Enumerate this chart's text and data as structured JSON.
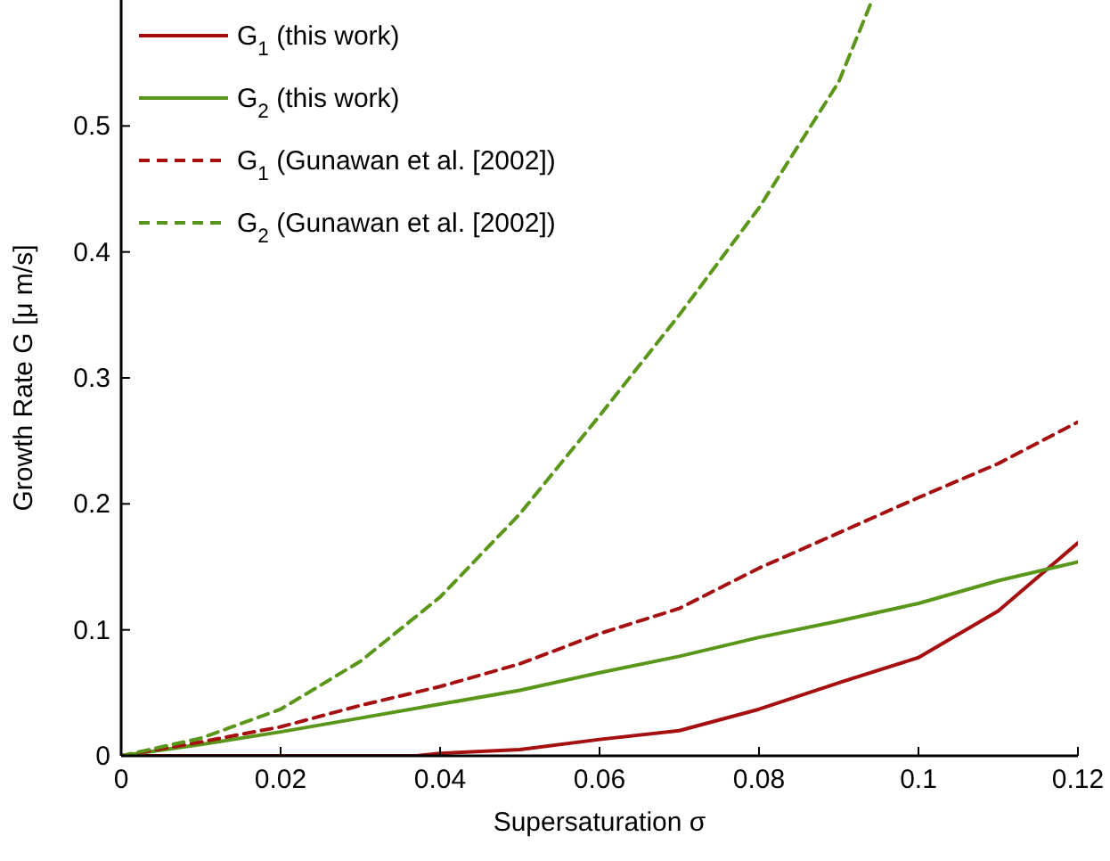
{
  "chart_data": {
    "type": "line",
    "xlabel": "Supersaturation σ",
    "ylabel": "Growth Rate G [μ m/s]",
    "xlim": [
      0,
      0.12
    ],
    "xticks": [
      0,
      0.02,
      0.04,
      0.06,
      0.08,
      0.1,
      0.12
    ],
    "ylim": [
      0,
      0.6
    ],
    "yticks": [
      0,
      0.1,
      0.2,
      0.3,
      0.4,
      0.5
    ],
    "grid": false,
    "legend": "top left",
    "series": [
      {
        "name": "G$_{1}$ (this work)",
        "color": "#a50f0f",
        "line_style": "solid",
        "x": [
          0,
          0.01,
          0.02,
          0.03,
          0.037,
          0.04,
          0.05,
          0.06,
          0.07,
          0.08,
          0.09,
          0.1,
          0.11,
          0.12
        ],
        "values": [
          0,
          0,
          0,
          0,
          0,
          0.002,
          0.005,
          0.013,
          0.02,
          0.037,
          0.058,
          0.078,
          0.115,
          0.169
        ]
      },
      {
        "name": "G$_{2}$ (this work)",
        "color": "#5a9619",
        "line_style": "solid",
        "x": [
          0,
          0.01,
          0.02,
          0.03,
          0.04,
          0.05,
          0.06,
          0.07,
          0.08,
          0.09,
          0.1,
          0.11,
          0.12
        ],
        "values": [
          0,
          0.009,
          0.019,
          0.03,
          0.041,
          0.052,
          0.066,
          0.079,
          0.094,
          0.107,
          0.121,
          0.139,
          0.154
        ]
      },
      {
        "name": "G$_{1}$ (Gunawan et al. [2002])",
        "color": "#a50f0f",
        "line_style": "dashed",
        "x": [
          0,
          0.01,
          0.02,
          0.03,
          0.04,
          0.05,
          0.06,
          0.07,
          0.08,
          0.09,
          0.1,
          0.11,
          0.12
        ],
        "values": [
          0,
          0.011,
          0.023,
          0.04,
          0.055,
          0.073,
          0.097,
          0.117,
          0.149,
          0.177,
          0.205,
          0.232,
          0.265
        ]
      },
      {
        "name": "G$_{2}$ (Gunawan et al. [2002])",
        "color": "#5a9619",
        "line_style": "dashed",
        "x": [
          0,
          0.01,
          0.02,
          0.03,
          0.04,
          0.05,
          0.06,
          0.07,
          0.08,
          0.09,
          0.094
        ],
        "values": [
          0,
          0.014,
          0.037,
          0.075,
          0.126,
          0.192,
          0.27,
          0.35,
          0.435,
          0.535,
          0.597
        ]
      }
    ]
  }
}
